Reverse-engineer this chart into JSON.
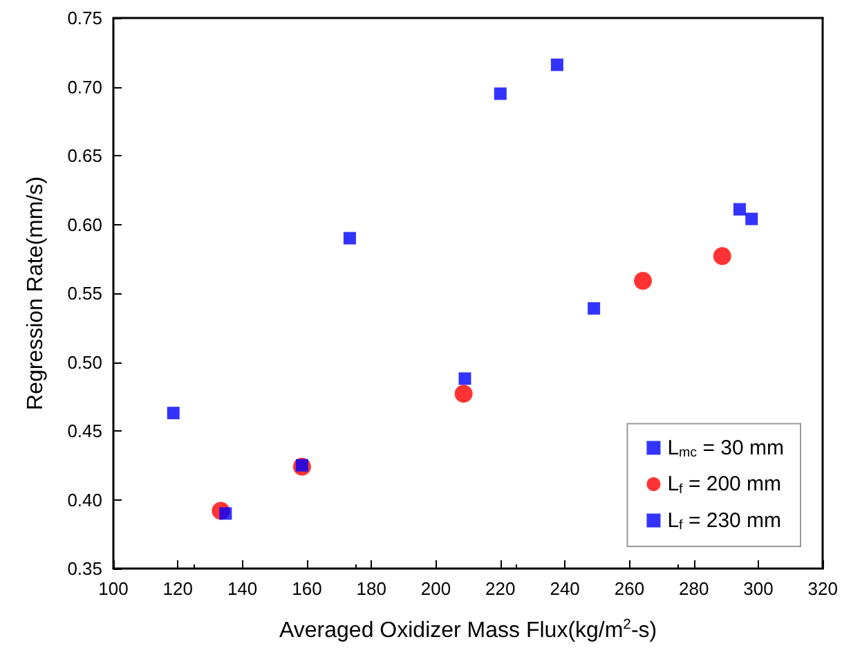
{
  "chart_data": {
    "type": "scatter",
    "xlabel": "Averaged Oxidizer Mass Flux(kg/m$^{2}$-s)",
    "ylabel": "Regression Rate(mm/s)",
    "xlim": [
      100,
      320
    ],
    "xticks": [
      100,
      120,
      140,
      160,
      180,
      200,
      220,
      240,
      260,
      280,
      300,
      320
    ],
    "ylim": [
      0.35,
      0.75
    ],
    "yticks": [
      {
        "value": 0.35,
        "label": "0.35"
      },
      {
        "value": 0.4,
        "label": "0.40"
      },
      {
        "value": 0.45,
        "label": "0.45"
      },
      {
        "value": 0.5,
        "label": "0.50"
      },
      {
        "value": 0.55,
        "label": "0.55"
      },
      {
        "value": 0.6,
        "label": "0.60"
      },
      {
        "value": 0.65,
        "label": "0.65"
      },
      {
        "value": 0.7,
        "label": "0.70"
      },
      {
        "value": 0.75,
        "label": "0.75"
      }
    ],
    "grid": false,
    "legend": "bottom right",
    "series": [
      {
        "name": "L$_{mc}$ = 30 mm",
        "color": "#0000ff",
        "marker": "square",
        "x": [
          118.6,
          173.3,
          220,
          237.6
        ],
        "values": [
          0.463,
          0.59,
          0.695,
          0.716
        ]
      },
      {
        "name": "L$_{f}$ = 200 mm",
        "color": "#ff0000",
        "marker": "circle",
        "x": [
          133.3,
          158.5,
          208.6,
          264.2,
          288.8
        ],
        "values": [
          0.392,
          0.424,
          0.477,
          0.559,
          0.577
        ]
      },
      {
        "name": "L$_{f}$ = 230 mm",
        "color": "#0000ff",
        "marker": "square",
        "x": [
          134.8,
          158.5,
          209,
          249,
          294.2,
          297.9
        ],
        "values": [
          0.39,
          0.425,
          0.488,
          0.539,
          0.611,
          0.604
        ]
      }
    ]
  }
}
